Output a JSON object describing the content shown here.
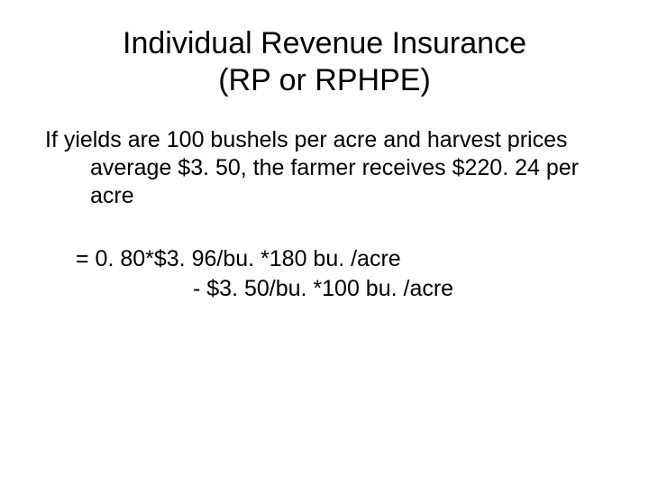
{
  "slide": {
    "title_line1": "Individual Revenue Insurance",
    "title_line2": "(RP or RPHPE)",
    "body": "If yields are 100 bushels per acre and harvest prices average $3. 50, the farmer receives $220. 24 per acre",
    "equation_line1": "= 0. 80*$3. 96/bu. *180 bu. /acre",
    "equation_line2": "- $3. 50/bu. *100 bu. /acre"
  },
  "style": {
    "background_color": "#ffffff",
    "text_color": "#000000",
    "title_fontsize": 34,
    "body_fontsize": 25,
    "font_family": "Arial"
  }
}
